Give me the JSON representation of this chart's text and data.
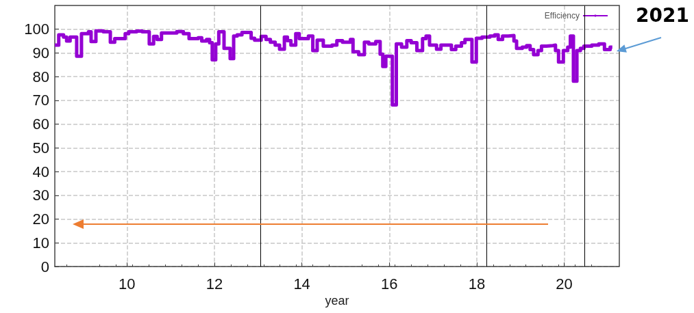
{
  "chart_data": {
    "type": "step",
    "xlabel": "year",
    "legend": "top right",
    "grid": true,
    "line_style": "solid",
    "marker": "none",
    "xlim": [
      8.35,
      21.26
    ],
    "xticks": [
      10,
      12,
      14,
      16,
      18,
      20
    ],
    "ylim": [
      0,
      110
    ],
    "yticks": [
      0,
      10,
      20,
      30,
      40,
      50,
      60,
      70,
      80,
      90,
      100
    ],
    "ref_lines": [
      {
        "axis": "x",
        "value": 13.05,
        "color": "#000000"
      },
      {
        "axis": "x",
        "value": 18.23,
        "color": "#000000"
      },
      {
        "axis": "x",
        "value": 20.47,
        "color": "#000000"
      }
    ],
    "annotations": [
      {
        "text": "2021",
        "x": 21.1,
        "y": 92.4
      }
    ],
    "series": [
      {
        "name": "Efficiency",
        "color": "#9400d3",
        "x": [
          8.35,
          8.44,
          8.55,
          8.62,
          8.7,
          8.85,
          8.96,
          9.12,
          9.18,
          9.29,
          9.46,
          9.62,
          9.72,
          9.84,
          9.96,
          10.04,
          10.22,
          10.35,
          10.51,
          10.61,
          10.69,
          10.79,
          11.14,
          11.29,
          11.42,
          11.63,
          11.71,
          11.82,
          11.89,
          11.95,
          12.03,
          12.1,
          12.22,
          12.36,
          12.44,
          12.52,
          12.63,
          12.84,
          12.92,
          13.07,
          13.18,
          13.28,
          13.39,
          13.49,
          13.6,
          13.67,
          13.75,
          13.86,
          13.94,
          14.15,
          14.25,
          14.35,
          14.49,
          14.69,
          14.8,
          14.93,
          15.11,
          15.17,
          15.3,
          15.43,
          15.53,
          15.69,
          15.79,
          15.85,
          15.92,
          16.07,
          16.16,
          16.28,
          16.4,
          16.5,
          16.63,
          16.76,
          16.84,
          16.92,
          17.08,
          17.18,
          17.31,
          17.42,
          17.52,
          17.65,
          17.73,
          17.89,
          17.99,
          18.12,
          18.3,
          18.41,
          18.49,
          18.59,
          18.72,
          18.85,
          18.91,
          19.04,
          19.14,
          19.22,
          19.3,
          19.4,
          19.48,
          19.59,
          19.74,
          19.8,
          19.87,
          19.98,
          20.08,
          20.14,
          20.21,
          20.29,
          20.37,
          20.45,
          20.63,
          20.79,
          20.92,
          21.05,
          21.1
        ],
        "values": [
          93.3,
          97.6,
          96.7,
          95,
          96.7,
          88.6,
          98.1,
          98.9,
          94.8,
          99.3,
          98.9,
          94.5,
          96,
          96,
          98.1,
          98.9,
          99.2,
          98.9,
          93.8,
          97,
          95.7,
          98.4,
          99,
          98.1,
          96,
          96.4,
          95,
          95.7,
          94.3,
          87.1,
          93.8,
          98.9,
          91.9,
          87.6,
          97.1,
          97.6,
          98.6,
          96.2,
          95.4,
          97,
          95.7,
          94.5,
          93.3,
          91.6,
          96.7,
          95.2,
          93.3,
          98.1,
          96,
          97.1,
          91,
          95.4,
          92.9,
          93.3,
          95.2,
          94.5,
          95.7,
          90.5,
          89.3,
          94.5,
          93.8,
          94.8,
          89.5,
          84.3,
          88.6,
          68.1,
          93.8,
          92.4,
          95.2,
          94.3,
          91,
          96,
          97.1,
          93.3,
          91.6,
          93.3,
          93.3,
          91.4,
          92.9,
          94.3,
          95.7,
          86.2,
          96.2,
          96.7,
          97.1,
          97.6,
          95.7,
          97.1,
          97.3,
          95,
          91.9,
          92.4,
          93.1,
          91.4,
          89.3,
          91,
          92.9,
          93.1,
          93.3,
          91,
          86.2,
          91,
          92.4,
          97.1,
          78.1,
          91,
          91.9,
          92.9,
          93.3,
          93.8,
          91.4,
          92.4,
          92.4
        ]
      }
    ]
  }
}
